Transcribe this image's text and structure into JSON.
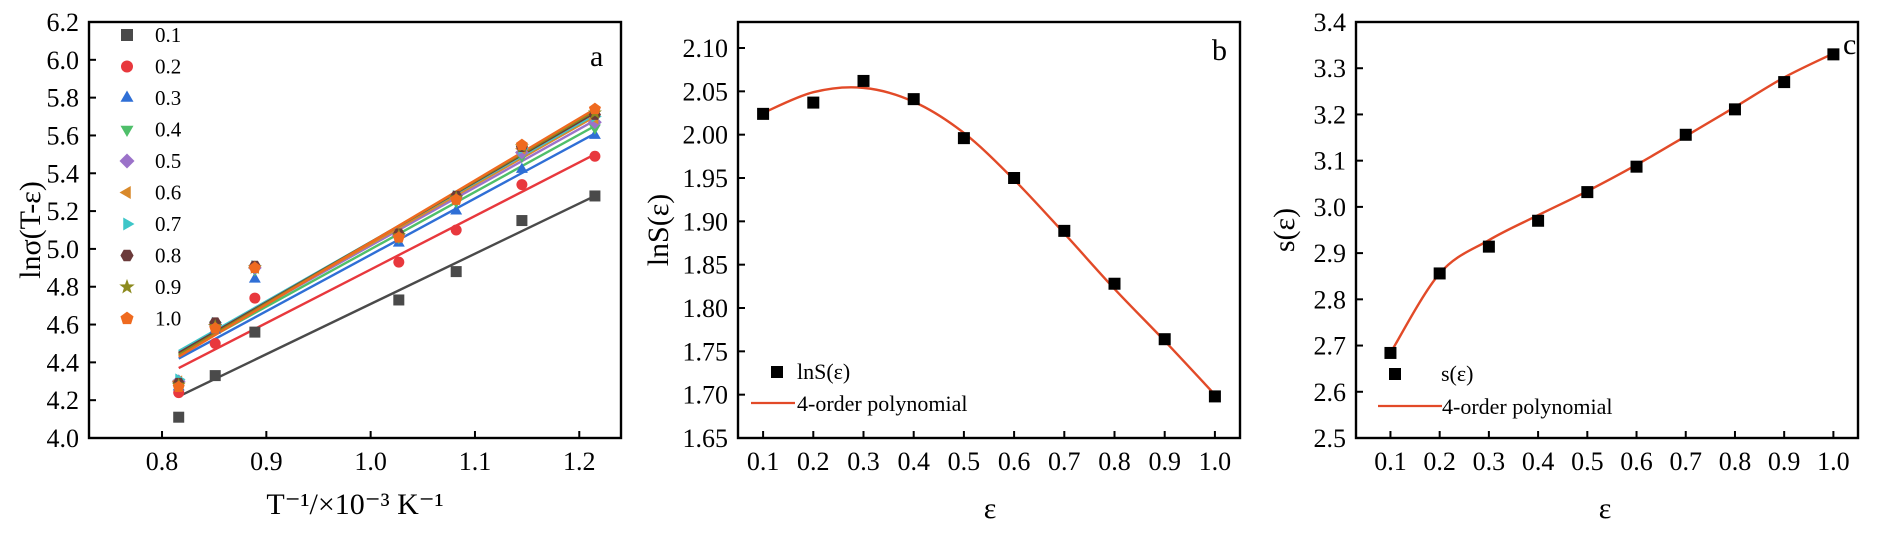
{
  "colors": {
    "s0.1": "#4a4a4a",
    "s0.2": "#e8383d",
    "s0.3": "#2f6fd6",
    "s0.4": "#4fbf6a",
    "s0.5": "#9b72c9",
    "s0.6": "#d9892a",
    "s0.7": "#3ec6c8",
    "s0.8": "#6b3a3a",
    "s0.9": "#8c8a1e",
    "s1.0": "#ef6a1f",
    "fit": "#e24a28",
    "marker": "#000000"
  },
  "chart_data": [
    {
      "type": "scatter",
      "panel_label": "a",
      "ylabel": "lnσ(T-ε)",
      "xlabel": "T⁻¹/×10⁻³ K⁻¹",
      "xlim": [
        0.73,
        1.24
      ],
      "ylim": [
        4.0,
        6.2
      ],
      "xticks": [
        0.8,
        0.9,
        1.0,
        1.1,
        1.2
      ],
      "yticks": [
        4.0,
        4.2,
        4.4,
        4.6,
        4.8,
        5.0,
        5.2,
        5.4,
        5.6,
        5.8,
        6.0,
        6.2
      ],
      "x": [
        0.816,
        0.851,
        0.889,
        1.027,
        1.082,
        1.145,
        1.215
      ],
      "series": [
        {
          "name": "0.1",
          "marker": "square",
          "color": "#4a4a4a",
          "values": [
            4.11,
            4.33,
            4.56,
            4.73,
            4.88,
            5.15,
            5.28
          ],
          "fit": [
            4.22,
            5.28
          ]
        },
        {
          "name": "0.2",
          "marker": "circle",
          "color": "#e8383d",
          "values": [
            4.24,
            4.5,
            4.74,
            4.93,
            5.1,
            5.34,
            5.49
          ],
          "fit": [
            4.37,
            5.5
          ]
        },
        {
          "name": "0.3",
          "marker": "triangle-up",
          "color": "#2f6fd6",
          "values": [
            4.27,
            4.57,
            4.84,
            5.03,
            5.2,
            5.42,
            5.6
          ],
          "fit": [
            4.42,
            5.61
          ]
        },
        {
          "name": "0.4",
          "marker": "triangle-down",
          "color": "#4fbf6a",
          "values": [
            4.29,
            4.6,
            4.89,
            5.06,
            5.25,
            5.49,
            5.64
          ],
          "fit": [
            4.44,
            5.65
          ]
        },
        {
          "name": "0.5",
          "marker": "diamond",
          "color": "#9b72c9",
          "values": [
            4.3,
            4.6,
            4.9,
            5.07,
            5.27,
            5.51,
            5.67
          ],
          "fit": [
            4.45,
            5.68
          ]
        },
        {
          "name": "0.6",
          "marker": "triangle-left",
          "color": "#d9892a",
          "values": [
            4.3,
            4.6,
            4.9,
            5.08,
            5.27,
            5.53,
            5.69
          ],
          "fit": [
            4.45,
            5.7
          ]
        },
        {
          "name": "0.7",
          "marker": "triangle-right",
          "color": "#3ec6c8",
          "values": [
            4.31,
            4.61,
            4.91,
            5.08,
            5.28,
            5.53,
            5.7
          ],
          "fit": [
            4.46,
            5.71
          ]
        },
        {
          "name": "0.8",
          "marker": "hexagon",
          "color": "#6b3a3a",
          "values": [
            4.29,
            4.61,
            4.91,
            5.08,
            5.28,
            5.54,
            5.71
          ],
          "fit": [
            4.45,
            5.72
          ]
        },
        {
          "name": "0.9",
          "marker": "star",
          "color": "#8c8a1e",
          "values": [
            4.28,
            4.59,
            4.9,
            5.07,
            5.27,
            5.54,
            5.72
          ],
          "fit": [
            4.44,
            5.73
          ]
        },
        {
          "name": "1.0",
          "marker": "pentagon",
          "color": "#ef6a1f",
          "values": [
            4.27,
            4.58,
            4.9,
            5.06,
            5.26,
            5.55,
            5.74
          ],
          "fit": [
            4.43,
            5.74
          ]
        }
      ],
      "legend_position": "top-left"
    },
    {
      "type": "scatter",
      "panel_label": "b",
      "ylabel": "lnS(ε)",
      "xlabel": "ε",
      "xlim": [
        0.05,
        1.05
      ],
      "ylim": [
        1.65,
        2.13
      ],
      "xticks": [
        0.1,
        0.2,
        0.3,
        0.4,
        0.5,
        0.6,
        0.7,
        0.8,
        0.9,
        1.0
      ],
      "yticks": [
        1.65,
        1.7,
        1.75,
        1.8,
        1.85,
        1.9,
        1.95,
        2.0,
        2.05,
        2.1
      ],
      "x": [
        0.1,
        0.2,
        0.3,
        0.4,
        0.5,
        0.6,
        0.7,
        0.8,
        0.9,
        1.0
      ],
      "points": [
        2.024,
        2.037,
        2.062,
        2.041,
        1.996,
        1.95,
        1.889,
        1.828,
        1.764,
        1.698
      ],
      "curve": [
        2.025,
        2.049,
        2.054,
        2.038,
        2.002,
        1.948,
        1.886,
        1.822,
        1.762,
        1.7
      ],
      "legend": [
        "lnS(ε)",
        "4-order polynomial"
      ],
      "legend_position": "bottom-left"
    },
    {
      "type": "scatter",
      "panel_label": "c",
      "ylabel": "s(ε)",
      "xlabel": "ε",
      "xlim": [
        0.03,
        1.05
      ],
      "ylim": [
        2.5,
        3.4
      ],
      "xticks": [
        0.1,
        0.2,
        0.3,
        0.4,
        0.5,
        0.6,
        0.7,
        0.8,
        0.9,
        1.0
      ],
      "yticks": [
        2.5,
        2.6,
        2.7,
        2.8,
        2.9,
        3.0,
        3.1,
        3.2,
        3.3,
        3.4
      ],
      "x": [
        0.1,
        0.2,
        0.3,
        0.4,
        0.5,
        0.6,
        0.7,
        0.8,
        0.9,
        1.0
      ],
      "points": [
        2.684,
        2.856,
        2.914,
        2.97,
        3.032,
        3.087,
        3.156,
        3.211,
        3.27,
        3.33
      ],
      "curve": [
        2.684,
        2.856,
        2.928,
        2.982,
        3.034,
        3.091,
        3.153,
        3.216,
        3.28,
        3.332
      ],
      "legend": [
        "s(ε)",
        "4-order polynomial"
      ],
      "legend_position": "bottom-left"
    }
  ]
}
